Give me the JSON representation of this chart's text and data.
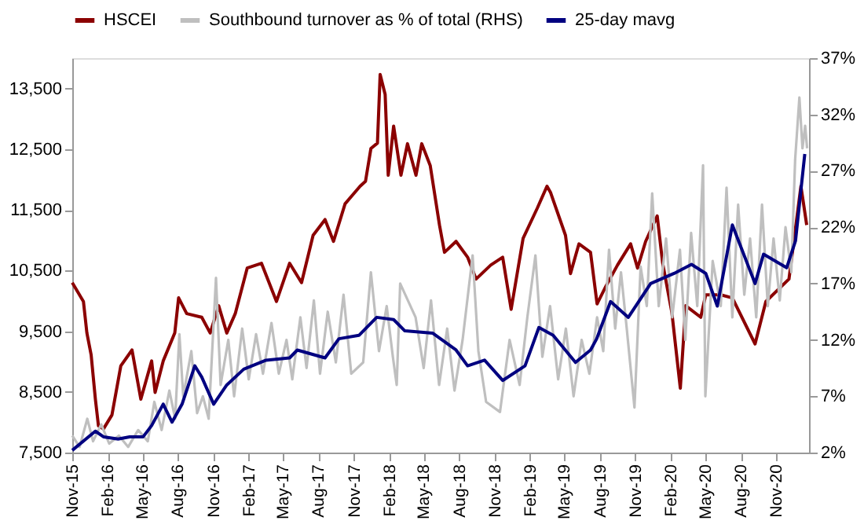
{
  "chart_data": {
    "type": "line",
    "legend": "top",
    "marker": "none",
    "line_style": "solid",
    "grid": false,
    "xlim": [
      "2015-11-01",
      "2021-01-25"
    ],
    "xticks": [
      {
        "value": "2015-11-01",
        "label": "Nov-15"
      },
      {
        "value": "2016-02-01",
        "label": "Feb-16"
      },
      {
        "value": "2016-05-01",
        "label": "May-16"
      },
      {
        "value": "2016-08-01",
        "label": "Aug-16"
      },
      {
        "value": "2016-11-01",
        "label": "Nov-16"
      },
      {
        "value": "2017-02-01",
        "label": "Feb-17"
      },
      {
        "value": "2017-05-01",
        "label": "May-17"
      },
      {
        "value": "2017-08-01",
        "label": "Aug-17"
      },
      {
        "value": "2017-11-01",
        "label": "Nov-17"
      },
      {
        "value": "2018-02-01",
        "label": "Feb-18"
      },
      {
        "value": "2018-05-01",
        "label": "May-18"
      },
      {
        "value": "2018-08-01",
        "label": "Aug-18"
      },
      {
        "value": "2018-11-01",
        "label": "Nov-18"
      },
      {
        "value": "2019-02-01",
        "label": "Feb-19"
      },
      {
        "value": "2019-05-01",
        "label": "May-19"
      },
      {
        "value": "2019-08-01",
        "label": "Aug-19"
      },
      {
        "value": "2019-11-01",
        "label": "Nov-19"
      },
      {
        "value": "2020-02-01",
        "label": "Feb-20"
      },
      {
        "value": "2020-05-01",
        "label": "May-20"
      },
      {
        "value": "2020-08-01",
        "label": "Aug-20"
      },
      {
        "value": "2020-11-01",
        "label": "Nov-20"
      }
    ],
    "ylim": [
      7500,
      14000
    ],
    "yticks": [
      {
        "value": 7500,
        "label": "7,500"
      },
      {
        "value": 8500,
        "label": "8,500"
      },
      {
        "value": 9500,
        "label": "9,500"
      },
      {
        "value": 10500,
        "label": "10,500"
      },
      {
        "value": 11500,
        "label": "11,500"
      },
      {
        "value": 12500,
        "label": "12,500"
      },
      {
        "value": 13500,
        "label": "13,500"
      }
    ],
    "y2lim": [
      2,
      37
    ],
    "y2ticks": [
      {
        "value": 2,
        "label": "2%"
      },
      {
        "value": 7,
        "label": "7%"
      },
      {
        "value": 12,
        "label": "12%"
      },
      {
        "value": 17,
        "label": "17%"
      },
      {
        "value": 22,
        "label": "22%"
      },
      {
        "value": 27,
        "label": "27%"
      },
      {
        "value": 32,
        "label": "32%"
      },
      {
        "value": 37,
        "label": "37%"
      }
    ],
    "series": [
      {
        "name": "HSCEI",
        "color": "#8b0000",
        "x": [
          "2015-11-01",
          "2015-11-30",
          "2015-12-09",
          "2015-12-20",
          "2015-12-31",
          "2016-01-08",
          "2016-01-21",
          "2016-02-12",
          "2016-03-06",
          "2016-04-04",
          "2016-04-27",
          "2016-05-25",
          "2016-06-03",
          "2016-06-24",
          "2016-07-24",
          "2016-08-03",
          "2016-08-24",
          "2016-10-02",
          "2016-10-24",
          "2016-11-15",
          "2016-12-06",
          "2016-12-28",
          "2017-01-28",
          "2017-03-06",
          "2017-04-14",
          "2017-05-18",
          "2017-06-18",
          "2017-07-18",
          "2017-08-18",
          "2017-09-09",
          "2017-10-09",
          "2017-11-17",
          "2017-12-01",
          "2017-12-15",
          "2018-01-01",
          "2018-01-08",
          "2018-01-21",
          "2018-01-29",
          "2018-02-12",
          "2018-03-03",
          "2018-03-20",
          "2018-04-11",
          "2018-04-26",
          "2018-05-18",
          "2018-06-11",
          "2018-06-24",
          "2018-07-24",
          "2018-08-23",
          "2018-09-14",
          "2018-10-22",
          "2018-11-22",
          "2018-12-14",
          "2019-01-14",
          "2019-02-20",
          "2019-03-17",
          "2019-03-26",
          "2019-05-04",
          "2019-05-17",
          "2019-06-08",
          "2019-07-08",
          "2019-07-25",
          "2019-08-16",
          "2019-09-16",
          "2019-10-20",
          "2019-11-07",
          "2019-11-28",
          "2019-12-28",
          "2020-01-11",
          "2020-02-04",
          "2020-02-26",
          "2020-03-11",
          "2020-04-19",
          "2020-05-02",
          "2020-06-10",
          "2020-07-10",
          "2020-09-07",
          "2020-10-05",
          "2020-12-04",
          "2021-01-04",
          "2021-01-19"
        ],
        "values": [
          10300,
          9990,
          9470,
          9110,
          8380,
          7940,
          7890,
          8120,
          8930,
          9190,
          8380,
          9010,
          8490,
          9010,
          9470,
          10050,
          9790,
          9730,
          9470,
          9920,
          9470,
          9790,
          10540,
          10620,
          9990,
          10620,
          10300,
          11080,
          11340,
          10980,
          11600,
          11890,
          11970,
          12510,
          12600,
          13730,
          13400,
          12070,
          12880,
          12070,
          12590,
          12070,
          12590,
          12230,
          11250,
          10800,
          10980,
          10720,
          10360,
          10590,
          10720,
          9860,
          11030,
          11530,
          11890,
          11790,
          11080,
          10450,
          10940,
          10800,
          9950,
          10230,
          10590,
          10940,
          10540,
          10980,
          11400,
          10630,
          9810,
          8560,
          9920,
          9730,
          10100,
          10100,
          10050,
          9290,
          9990,
          10360,
          11890,
          11250
        ]
      },
      {
        "name": "Southbound turnover as % of total (RHS)",
        "color": "#bfbfbf",
        "axis": "y2",
        "x": [
          "2015-11-01",
          "2015-11-20",
          "2015-12-10",
          "2015-12-25",
          "2016-01-15",
          "2016-02-05",
          "2016-03-01",
          "2016-03-25",
          "2016-04-20",
          "2016-05-15",
          "2016-06-01",
          "2016-06-20",
          "2016-07-10",
          "2016-07-25",
          "2016-08-05",
          "2016-08-15",
          "2016-09-05",
          "2016-09-20",
          "2016-10-05",
          "2016-10-20",
          "2016-11-08",
          "2016-11-20",
          "2016-12-10",
          "2016-12-25",
          "2017-01-15",
          "2017-02-01",
          "2017-02-20",
          "2017-03-10",
          "2017-04-01",
          "2017-04-20",
          "2017-05-10",
          "2017-05-25",
          "2017-06-15",
          "2017-07-01",
          "2017-07-20",
          "2017-08-05",
          "2017-08-25",
          "2017-09-15",
          "2017-10-05",
          "2017-10-25",
          "2017-11-25",
          "2017-12-15",
          "2018-01-05",
          "2018-01-25",
          "2018-02-10",
          "2018-02-20",
          "2018-03-01",
          "2018-04-10",
          "2018-05-01",
          "2018-05-20",
          "2018-06-10",
          "2018-07-01",
          "2018-07-20",
          "2018-08-10",
          "2018-09-05",
          "2018-09-20",
          "2018-10-10",
          "2018-11-15",
          "2018-12-10",
          "2019-01-05",
          "2019-01-25",
          "2019-02-15",
          "2019-03-05",
          "2019-03-25",
          "2019-04-15",
          "2019-05-05",
          "2019-05-25",
          "2019-06-15",
          "2019-07-05",
          "2019-07-25",
          "2019-08-10",
          "2019-08-25",
          "2019-09-10",
          "2019-09-25",
          "2019-10-10",
          "2019-10-30",
          "2019-11-15",
          "2019-12-01",
          "2019-12-15",
          "2020-01-01",
          "2020-01-20",
          "2020-02-05",
          "2020-02-25",
          "2020-03-10",
          "2020-03-25",
          "2020-04-10",
          "2020-04-25",
          "2020-05-01",
          "2020-05-20",
          "2020-06-10",
          "2020-06-25",
          "2020-07-10",
          "2020-07-25",
          "2020-08-10",
          "2020-08-25",
          "2020-09-10",
          "2020-09-25",
          "2020-10-10",
          "2020-10-25",
          "2020-11-10",
          "2020-11-25",
          "2020-12-10",
          "2020-12-20",
          "2020-12-31",
          "2021-01-08",
          "2021-01-15",
          "2021-01-20"
        ],
        "values": [
          3.5,
          2.5,
          5.0,
          3.0,
          4.5,
          2.8,
          3.5,
          2.5,
          4.0,
          3.0,
          6.5,
          4.0,
          7.5,
          5.0,
          12.5,
          7.0,
          11.0,
          5.5,
          7.0,
          5.0,
          17.5,
          8.0,
          12.0,
          7.0,
          13.0,
          8.5,
          12.5,
          9.0,
          13.5,
          9.0,
          12.0,
          8.5,
          14.0,
          9.5,
          15.5,
          9.0,
          14.5,
          10.0,
          16.0,
          9.0,
          10.0,
          18.0,
          11.0,
          15.0,
          10.5,
          8.0,
          17.0,
          14.0,
          9.5,
          15.5,
          8.0,
          13.0,
          7.5,
          12.0,
          19.5,
          11.0,
          6.5,
          5.6,
          12.0,
          8.0,
          14.0,
          19.5,
          10.5,
          15.0,
          8.5,
          13.0,
          7.0,
          12.0,
          9.0,
          14.0,
          11.0,
          20.0,
          13.0,
          18.0,
          13.0,
          6.0,
          18.5,
          15.0,
          25.0,
          15.0,
          21.0,
          14.0,
          20.0,
          12.0,
          21.5,
          15.0,
          27.5,
          7.0,
          19.0,
          15.0,
          25.5,
          14.0,
          24.0,
          16.0,
          21.0,
          14.0,
          24.0,
          15.0,
          21.0,
          15.5,
          22.0,
          18.0,
          28.0,
          33.5,
          29.0,
          31.0,
          29.0
        ]
      },
      {
        "name": "25-day mavg",
        "color": "#000080",
        "axis": "y2",
        "x": [
          "2015-11-01",
          "2015-12-31",
          "2016-01-21",
          "2016-02-28",
          "2016-03-29",
          "2016-05-03",
          "2016-05-25",
          "2016-06-24",
          "2016-07-17",
          "2016-08-12",
          "2016-09-14",
          "2016-10-02",
          "2016-11-02",
          "2016-12-06",
          "2017-01-19",
          "2017-03-18",
          "2017-05-18",
          "2017-06-07",
          "2017-08-18",
          "2017-09-23",
          "2017-11-14",
          "2017-12-30",
          "2018-02-12",
          "2018-03-13",
          "2018-05-24",
          "2018-07-24",
          "2018-08-23",
          "2018-10-06",
          "2018-11-22",
          "2019-01-19",
          "2019-02-24",
          "2019-04-02",
          "2019-05-30",
          "2019-07-08",
          "2019-07-24",
          "2019-08-29",
          "2019-10-14",
          "2019-12-11",
          "2020-02-10",
          "2020-03-26",
          "2020-05-02",
          "2020-06-01",
          "2020-07-10",
          "2020-09-07",
          "2020-09-29",
          "2020-11-28",
          "2020-12-21",
          "2021-01-14"
        ],
        "values": [
          2.2,
          3.9,
          3.4,
          3.2,
          3.4,
          3.4,
          4.4,
          6.3,
          4.7,
          6.3,
          9.7,
          8.7,
          6.3,
          8.0,
          9.4,
          10.2,
          10.4,
          11.1,
          10.4,
          12.1,
          12.4,
          14.0,
          13.8,
          12.8,
          12.6,
          11.1,
          9.7,
          10.2,
          8.4,
          9.7,
          13.1,
          12.4,
          10.0,
          11.1,
          12.1,
          15.4,
          14.0,
          17.0,
          17.9,
          18.7,
          17.9,
          15.0,
          22.2,
          17.0,
          19.6,
          18.4,
          20.8,
          28.5
        ]
      }
    ]
  }
}
